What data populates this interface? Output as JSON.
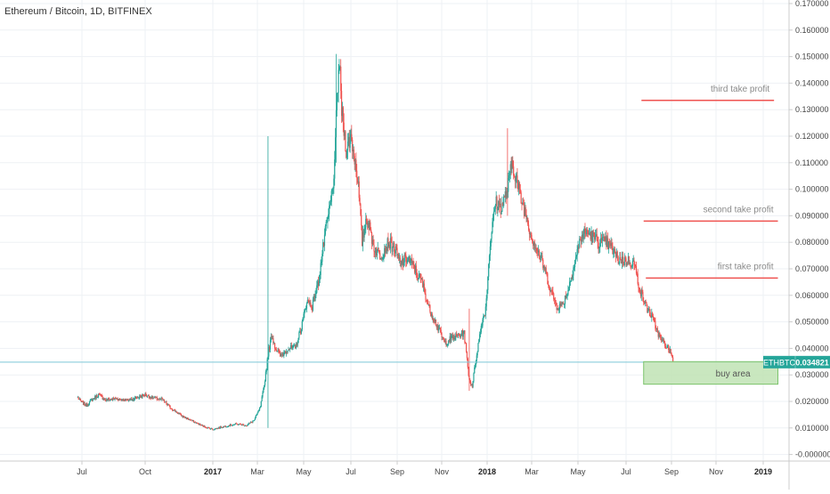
{
  "header": {
    "title": "Ethereum / Bitcoin, 1D, BITFINEX"
  },
  "colors": {
    "up": "#26a69a",
    "down": "#ef5350",
    "grid": "#eef1f4",
    "axis": "#cccccc",
    "price_line": "#7ec8d6",
    "badge_bg": "#26a69a",
    "take_profit": "#ef5350",
    "buy_area_fill": "#bfe3b4",
    "buy_area_stroke": "#7cc46c"
  },
  "chart_data": {
    "type": "candlestick",
    "title": "Ethereum / Bitcoin, 1D, BITFINEX",
    "xlabel": "",
    "ylabel": "",
    "ylim": [
      -0.0005,
      0.17
    ],
    "x_ticks": [
      "Jul",
      "Oct",
      "2017",
      "Mar",
      "May",
      "Jul",
      "Sep",
      "Nov",
      "2018",
      "Mar",
      "May",
      "Jul",
      "Sep",
      "Nov",
      "2019"
    ],
    "x_ticks_bold": [
      "2017",
      "2018",
      "2019"
    ],
    "y_ticks": [
      "0.170000",
      "0.160000",
      "0.150000",
      "0.140000",
      "0.130000",
      "0.120000",
      "0.110000",
      "0.100000",
      "0.090000",
      "0.080000",
      "0.070000",
      "0.060000",
      "0.050000",
      "0.040000",
      "0.030000",
      "0.020000",
      "0.010000",
      "-0.000000"
    ],
    "grid": true,
    "series": [
      {
        "name": "ETHBTC",
        "x_start": "2016-06-25",
        "x_end": "2018-09-03",
        "close_path": [
          [
            "2016-06-25",
            0.0215
          ],
          [
            "2016-07-01",
            0.0195
          ],
          [
            "2016-07-08",
            0.0185
          ],
          [
            "2016-07-15",
            0.0205
          ],
          [
            "2016-07-25",
            0.0225
          ],
          [
            "2016-08-05",
            0.0205
          ],
          [
            "2016-08-20",
            0.021
          ],
          [
            "2016-09-05",
            0.0205
          ],
          [
            "2016-09-20",
            0.0215
          ],
          [
            "2016-10-01",
            0.0225
          ],
          [
            "2016-10-10",
            0.0215
          ],
          [
            "2016-10-25",
            0.0205
          ],
          [
            "2016-11-05",
            0.0175
          ],
          [
            "2016-11-20",
            0.0145
          ],
          [
            "2016-12-05",
            0.0125
          ],
          [
            "2016-12-20",
            0.0105
          ],
          [
            "2017-01-01",
            0.0095
          ],
          [
            "2017-01-15",
            0.0105
          ],
          [
            "2017-02-01",
            0.0115
          ],
          [
            "2017-02-15",
            0.011
          ],
          [
            "2017-02-25",
            0.013
          ],
          [
            "2017-03-05",
            0.018
          ],
          [
            "2017-03-10",
            0.026
          ],
          [
            "2017-03-15",
            0.038
          ],
          [
            "2017-03-20",
            0.045
          ],
          [
            "2017-03-25",
            0.04
          ],
          [
            "2017-04-01",
            0.037
          ],
          [
            "2017-04-10",
            0.04
          ],
          [
            "2017-04-20",
            0.04
          ],
          [
            "2017-04-28",
            0.048
          ],
          [
            "2017-05-05",
            0.058
          ],
          [
            "2017-05-12",
            0.056
          ],
          [
            "2017-05-20",
            0.065
          ],
          [
            "2017-05-28",
            0.082
          ],
          [
            "2017-06-05",
            0.095
          ],
          [
            "2017-06-10",
            0.108
          ],
          [
            "2017-06-13",
            0.135
          ],
          [
            "2017-06-16",
            0.148
          ],
          [
            "2017-06-19",
            0.13
          ],
          [
            "2017-06-25",
            0.115
          ],
          [
            "2017-07-01",
            0.12
          ],
          [
            "2017-07-10",
            0.105
          ],
          [
            "2017-07-16",
            0.08
          ],
          [
            "2017-07-22",
            0.09
          ],
          [
            "2017-08-01",
            0.078
          ],
          [
            "2017-08-10",
            0.075
          ],
          [
            "2017-08-20",
            0.08
          ],
          [
            "2017-08-28",
            0.078
          ],
          [
            "2017-09-05",
            0.072
          ],
          [
            "2017-09-15",
            0.074
          ],
          [
            "2017-09-25",
            0.07
          ],
          [
            "2017-10-05",
            0.065
          ],
          [
            "2017-10-15",
            0.055
          ],
          [
            "2017-10-25",
            0.049
          ],
          [
            "2017-11-05",
            0.042
          ],
          [
            "2017-11-15",
            0.044
          ],
          [
            "2017-11-25",
            0.045
          ],
          [
            "2017-12-01",
            0.046
          ],
          [
            "2017-12-08",
            0.028
          ],
          [
            "2017-12-12",
            0.026
          ],
          [
            "2017-12-18",
            0.038
          ],
          [
            "2017-12-25",
            0.05
          ],
          [
            "2017-12-30",
            0.055
          ],
          [
            "2018-01-05",
            0.08
          ],
          [
            "2018-01-12",
            0.095
          ],
          [
            "2018-01-20",
            0.093
          ],
          [
            "2018-01-28",
            0.1
          ],
          [
            "2018-02-03",
            0.11
          ],
          [
            "2018-02-08",
            0.105
          ],
          [
            "2018-02-14",
            0.097
          ],
          [
            "2018-02-22",
            0.09
          ],
          [
            "2018-03-01",
            0.082
          ],
          [
            "2018-03-10",
            0.076
          ],
          [
            "2018-03-18",
            0.07
          ],
          [
            "2018-03-26",
            0.062
          ],
          [
            "2018-04-03",
            0.056
          ],
          [
            "2018-04-10",
            0.056
          ],
          [
            "2018-04-18",
            0.062
          ],
          [
            "2018-04-26",
            0.072
          ],
          [
            "2018-05-05",
            0.082
          ],
          [
            "2018-05-12",
            0.084
          ],
          [
            "2018-05-20",
            0.082
          ],
          [
            "2018-05-28",
            0.08
          ],
          [
            "2018-06-05",
            0.08
          ],
          [
            "2018-06-12",
            0.078
          ],
          [
            "2018-06-20",
            0.074
          ],
          [
            "2018-06-28",
            0.073
          ],
          [
            "2018-07-05",
            0.073
          ],
          [
            "2018-07-12",
            0.072
          ],
          [
            "2018-07-20",
            0.062
          ],
          [
            "2018-07-28",
            0.056
          ],
          [
            "2018-08-05",
            0.052
          ],
          [
            "2018-08-12",
            0.047
          ],
          [
            "2018-08-18",
            0.043
          ],
          [
            "2018-08-25",
            0.041
          ],
          [
            "2018-09-01",
            0.038
          ],
          [
            "2018-09-03",
            0.0348
          ]
        ],
        "peaks": [
          {
            "date": "2017-03-15",
            "high": 0.12,
            "low": 0.01
          },
          {
            "date": "2017-06-12",
            "high": 0.151,
            "low": 0.11
          },
          {
            "date": "2018-01-28",
            "high": 0.123,
            "low": 0.09
          },
          {
            "date": "2017-12-08",
            "high": 0.055,
            "low": 0.024
          }
        ],
        "last_value": 0.034821
      }
    ],
    "last_price": {
      "symbol": "ETHBTC",
      "value": "0.034821"
    },
    "annotations": [
      {
        "label": "third take profit",
        "y": 0.1335,
        "x_from": "2018-07-22",
        "x_to": "2019-01-15"
      },
      {
        "label": "second take profit",
        "y": 0.088,
        "x_from": "2018-07-25",
        "x_to": "2019-01-20"
      },
      {
        "label": "first take profit",
        "y": 0.0665,
        "x_from": "2018-07-28",
        "x_to": "2019-01-20"
      }
    ],
    "buy_area": {
      "label": "buy area",
      "y_top": 0.035,
      "y_bottom": 0.0265,
      "x_from": "2018-07-25",
      "x_to": "2019-01-20"
    }
  }
}
